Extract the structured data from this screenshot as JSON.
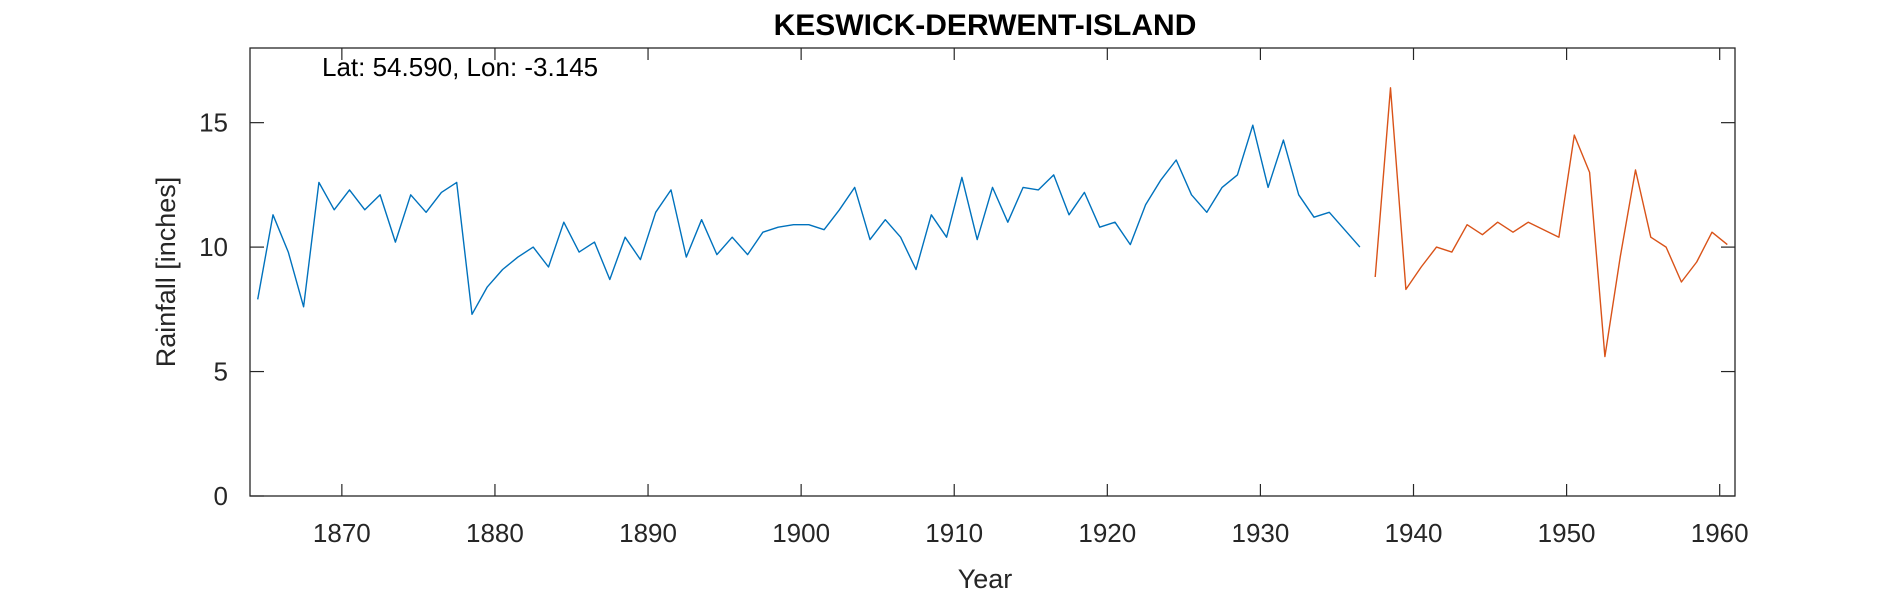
{
  "chart_data": {
    "type": "line",
    "title": "KESWICK-DERWENT-ISLAND",
    "annotation": "Lat: 54.590, Lon: -3.145",
    "xlabel": "Year",
    "ylabel": "Rainfall [inches]",
    "xlim": [
      1864,
      1961
    ],
    "ylim": [
      0,
      18
    ],
    "xticks": [
      1870,
      1880,
      1890,
      1900,
      1910,
      1920,
      1930,
      1940,
      1950,
      1960
    ],
    "yticks": [
      0,
      5,
      10,
      15
    ],
    "grid": false,
    "legend": "none",
    "colors": {
      "series1": "#0072BD",
      "series2": "#D95319",
      "axis": "#262626"
    },
    "series": [
      {
        "x": [
          1864.5,
          1865.5,
          1866.5,
          1867.5,
          1868.5,
          1869.5,
          1870.5,
          1871.5,
          1872.5,
          1873.5,
          1874.5,
          1875.5,
          1876.5,
          1877.5,
          1878.5,
          1879.5,
          1880.5,
          1881.5,
          1882.5,
          1883.5,
          1884.5,
          1885.5,
          1886.5,
          1887.5,
          1888.5,
          1889.5,
          1890.5,
          1891.5,
          1892.5,
          1893.5,
          1894.5,
          1895.5,
          1896.5,
          1897.5,
          1898.5,
          1899.5,
          1900.5,
          1901.5,
          1902.5,
          1903.5,
          1904.5,
          1905.5,
          1906.5,
          1907.5,
          1908.5,
          1909.5,
          1910.5,
          1911.5,
          1912.5,
          1913.5,
          1914.5,
          1915.5,
          1916.5,
          1917.5,
          1918.5,
          1919.5,
          1920.5,
          1921.5,
          1922.5,
          1923.5,
          1924.5,
          1925.5,
          1926.5,
          1927.5,
          1928.5,
          1929.5,
          1930.5,
          1931.5,
          1932.5,
          1933.5,
          1934.5,
          1935.5,
          1936.5
        ],
        "y": [
          7.9,
          11.3,
          9.8,
          7.6,
          12.6,
          11.5,
          12.3,
          11.5,
          12.1,
          10.2,
          12.1,
          11.4,
          12.2,
          12.6,
          7.3,
          8.4,
          9.1,
          9.6,
          10.0,
          9.2,
          11.0,
          9.8,
          10.2,
          8.7,
          10.4,
          9.5,
          11.4,
          12.3,
          9.6,
          11.1,
          9.7,
          10.4,
          9.7,
          10.6,
          10.8,
          10.9,
          10.9,
          10.7,
          11.5,
          12.4,
          10.3,
          11.1,
          10.4,
          9.1,
          11.3,
          10.4,
          12.8,
          10.3,
          12.4,
          11.0,
          12.4,
          12.3,
          12.9,
          11.3,
          12.2,
          10.8,
          11.0,
          10.1,
          11.7,
          12.7,
          13.5,
          12.1,
          11.4,
          12.4,
          12.9,
          14.9,
          12.4,
          14.3,
          12.1,
          11.2,
          11.4,
          10.7,
          10.0
        ]
      },
      {
        "x": [
          1937.5,
          1938.5,
          1939.5,
          1940.5,
          1941.5,
          1942.5,
          1943.5,
          1944.5,
          1945.5,
          1946.5,
          1947.5,
          1948.5,
          1949.5,
          1950.5,
          1951.5,
          1952.5,
          1953.5,
          1954.5,
          1955.5,
          1956.5,
          1957.5,
          1958.5,
          1959.5,
          1960.5
        ],
        "y": [
          8.8,
          16.4,
          8.3,
          9.2,
          10.0,
          9.8,
          10.9,
          10.5,
          11.0,
          10.6,
          11.0,
          10.7,
          10.4,
          14.5,
          13.0,
          5.6,
          9.6,
          13.1,
          10.4,
          10.0,
          8.6,
          9.4,
          10.6,
          10.1
        ]
      }
    ]
  }
}
